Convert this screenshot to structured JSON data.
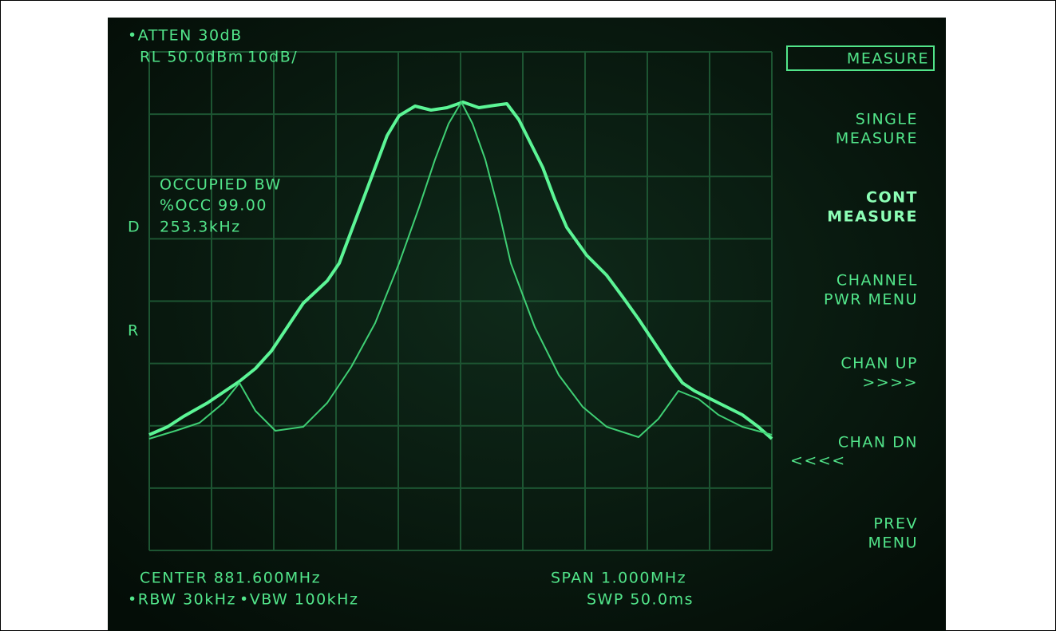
{
  "screen": {
    "header": {
      "atten": "•ATTEN 30dB",
      "ref_level": "RL 50.0dBm",
      "scale": "10dB/"
    },
    "softkeys": {
      "title": "MEASURE",
      "single": [
        "SINGLE",
        "MEASURE"
      ],
      "cont": [
        "CONT",
        "MEASURE"
      ],
      "channel_pwr": [
        "CHANNEL",
        "PWR MENU"
      ],
      "chan_up": [
        "CHAN UP",
        ">>>>"
      ],
      "chan_dn": [
        "CHAN DN",
        "<<<<"
      ],
      "prev": [
        "PREV",
        "MENU"
      ]
    },
    "readout": {
      "label": "OCCUPIED BW",
      "occ": "%OCC 99.00",
      "bandwidth": "253.3kHz",
      "d_marker": "D",
      "r_marker": "R"
    },
    "footer": {
      "center": "CENTER 881.600MHz",
      "span": "SPAN 1.000MHz",
      "rbw": "•RBW 30kHz",
      "vbw": "•VBW 100kHz",
      "sweep": "SWP 50.0ms"
    }
  }
}
